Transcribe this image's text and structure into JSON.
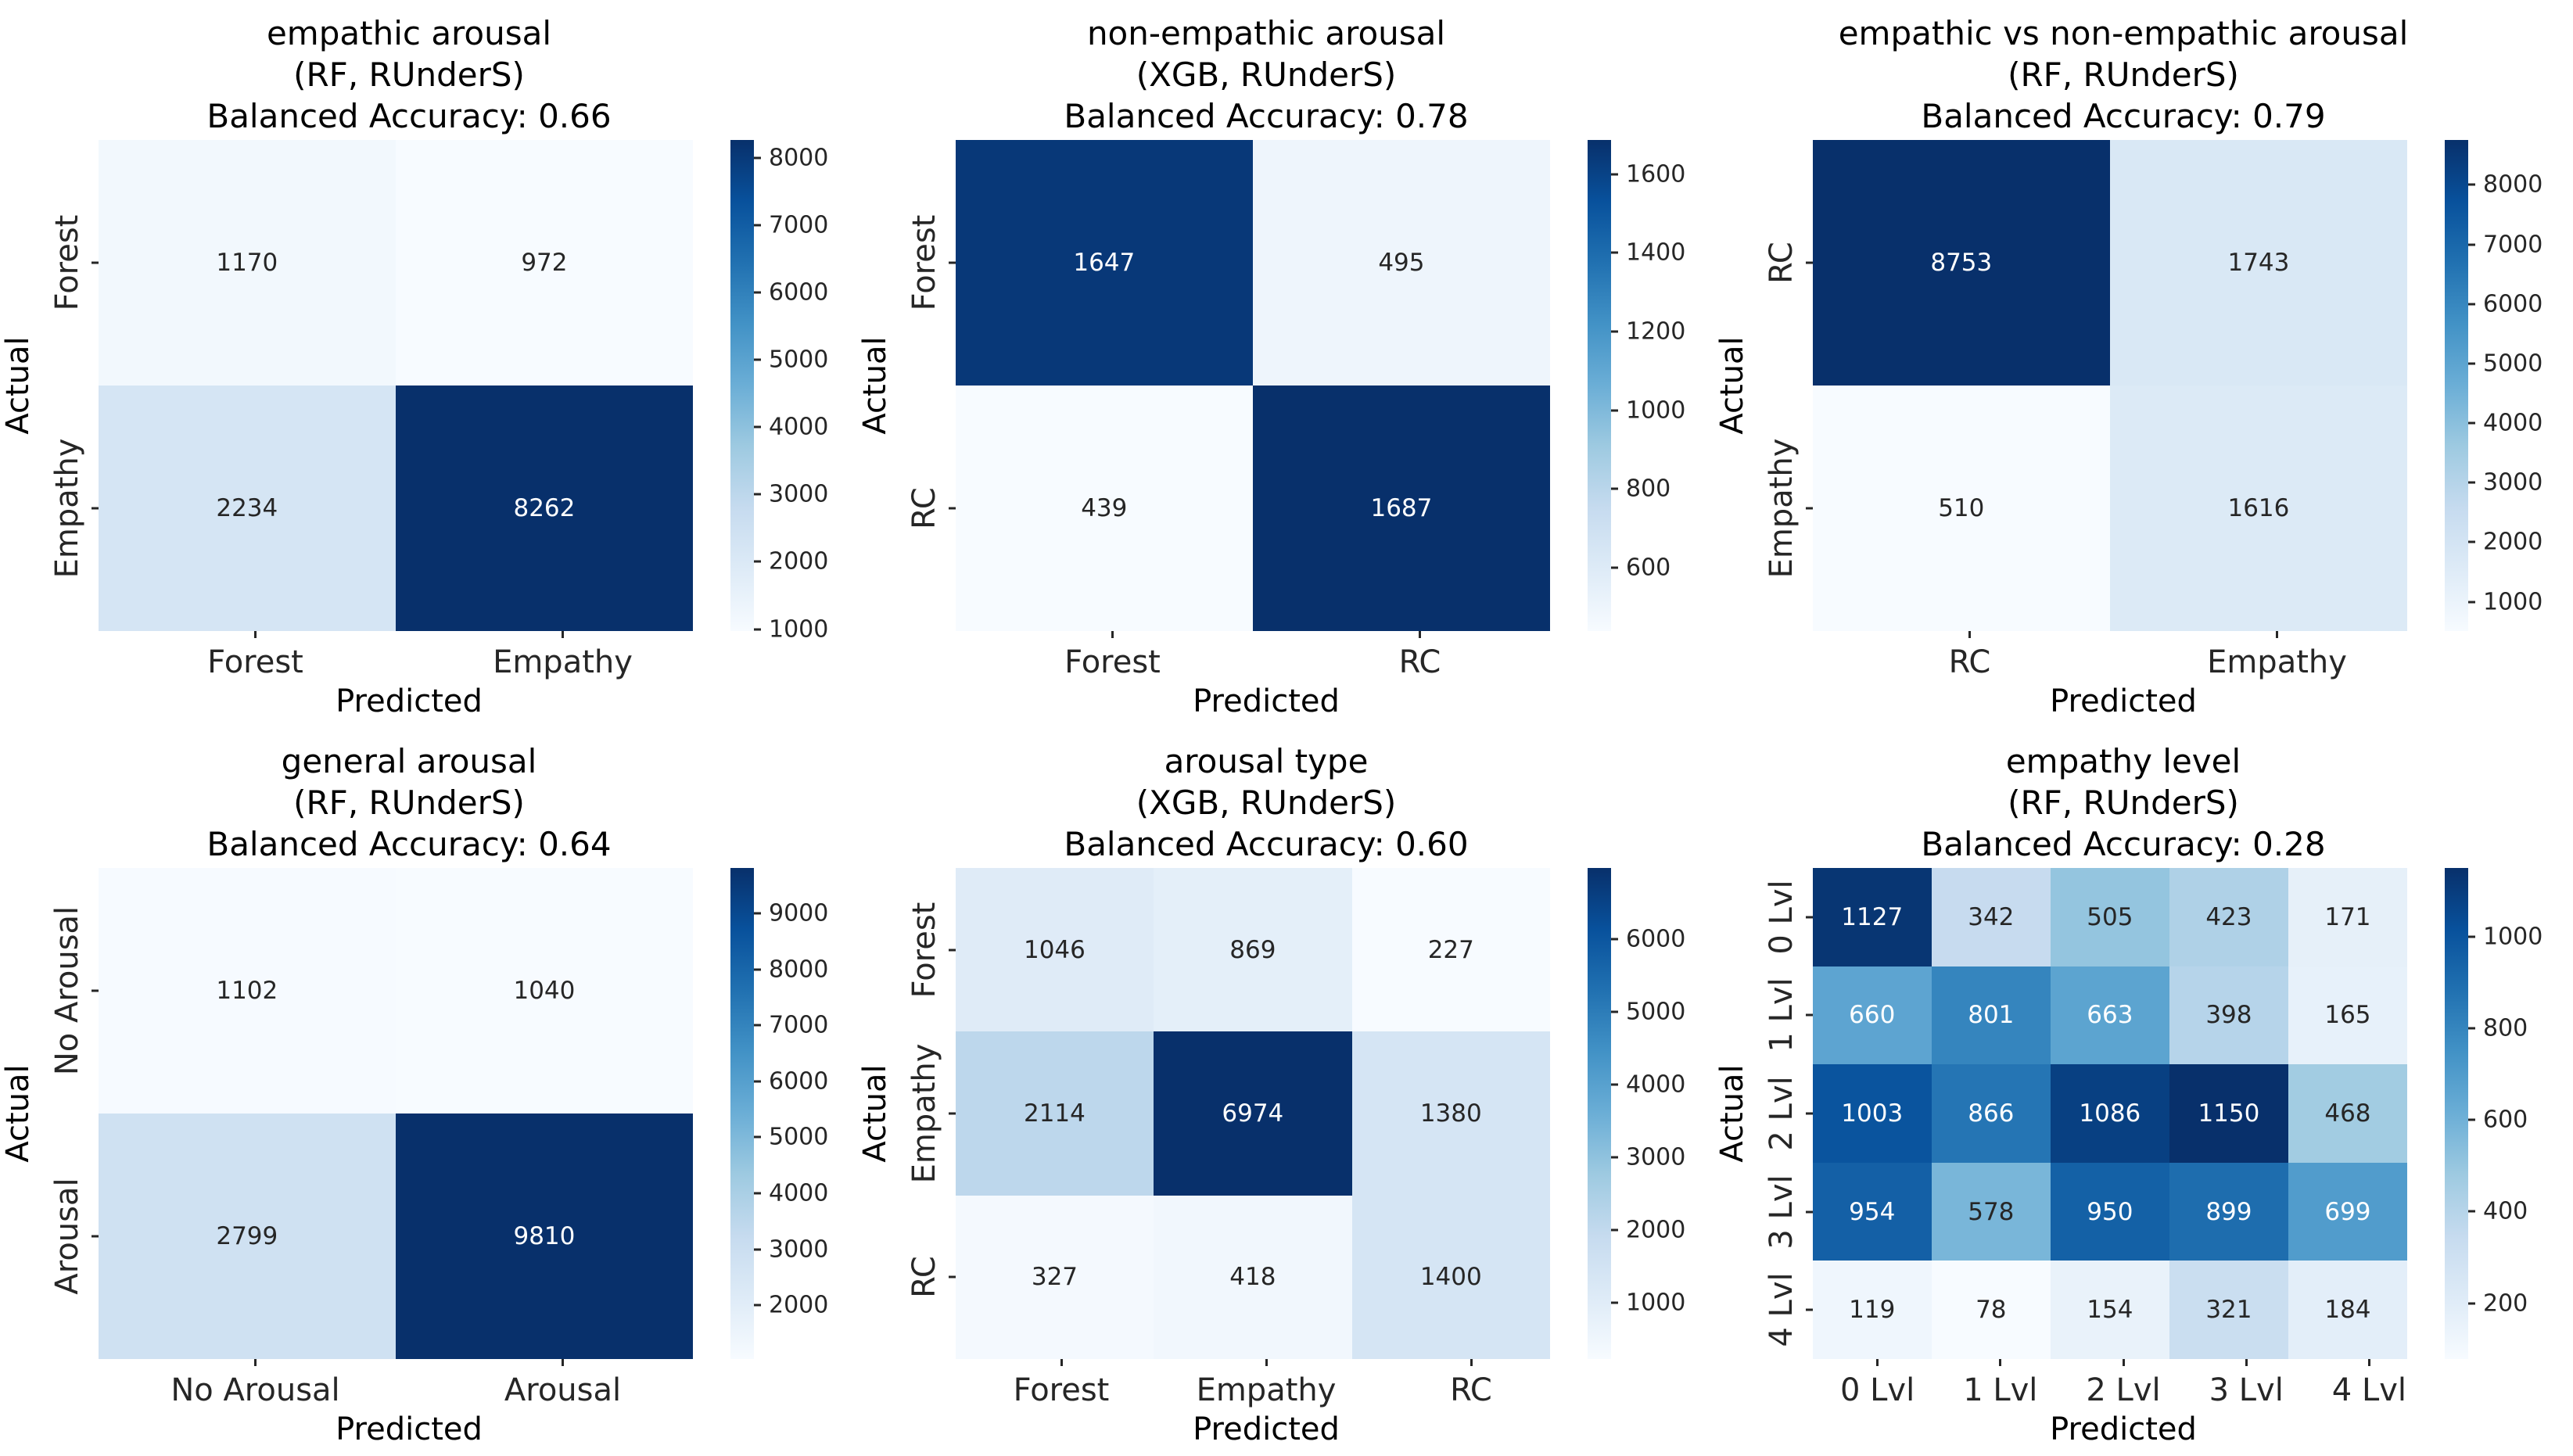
{
  "figure": {
    "background": "#ffffff",
    "annotation_text_dark": "#262626",
    "annotation_text_light": "#ffffff",
    "colormap": "Blues",
    "colormap_low": "#f7fbff",
    "colormap_high": "#08306b"
  },
  "chart_data": [
    {
      "type": "heatmap",
      "title": "empathic arousal",
      "subtitle": "(RF, RUnderS)",
      "accuracy_label": "Balanced Accuracy: 0.66",
      "xlabel": "Predicted",
      "ylabel": "Actual",
      "x_tick_labels": [
        "Forest",
        "Empathy"
      ],
      "y_tick_labels": [
        "Forest",
        "Empathy"
      ],
      "values": [
        [
          1170,
          972
        ],
        [
          2234,
          8262
        ]
      ],
      "colorbar_ticks": [
        1000,
        2000,
        3000,
        4000,
        5000,
        6000,
        7000,
        8000
      ],
      "colormap": "Blues",
      "legend_position": "right",
      "grid": false
    },
    {
      "type": "heatmap",
      "title": "non-empathic arousal",
      "subtitle": "(XGB, RUnderS)",
      "accuracy_label": "Balanced Accuracy: 0.78",
      "xlabel": "Predicted",
      "ylabel": "Actual",
      "x_tick_labels": [
        "Forest",
        "RC"
      ],
      "y_tick_labels": [
        "Forest",
        "RC"
      ],
      "values": [
        [
          1647,
          495
        ],
        [
          439,
          1687
        ]
      ],
      "colorbar_ticks": [
        600,
        800,
        1000,
        1200,
        1400,
        1600
      ],
      "colormap": "Blues",
      "legend_position": "right",
      "grid": false
    },
    {
      "type": "heatmap",
      "title": "empathic vs non-empathic arousal",
      "subtitle": "(RF, RUnderS)",
      "accuracy_label": "Balanced Accuracy: 0.79",
      "xlabel": "Predicted",
      "ylabel": "Actual",
      "x_tick_labels": [
        "RC",
        "Empathy"
      ],
      "y_tick_labels": [
        "RC",
        "Empathy"
      ],
      "values": [
        [
          8753,
          1743
        ],
        [
          510,
          1616
        ]
      ],
      "colorbar_ticks": [
        1000,
        2000,
        3000,
        4000,
        5000,
        6000,
        7000,
        8000
      ],
      "colormap": "Blues",
      "legend_position": "right",
      "grid": false
    },
    {
      "type": "heatmap",
      "title": "general arousal",
      "subtitle": "(RF, RUnderS)",
      "accuracy_label": "Balanced Accuracy: 0.64",
      "xlabel": "Predicted",
      "ylabel": "Actual",
      "x_tick_labels": [
        "No Arousal",
        "Arousal"
      ],
      "y_tick_labels": [
        "No Arousal",
        "Arousal"
      ],
      "values": [
        [
          1102,
          1040
        ],
        [
          2799,
          9810
        ]
      ],
      "colorbar_ticks": [
        2000,
        3000,
        4000,
        5000,
        6000,
        7000,
        8000,
        9000
      ],
      "colormap": "Blues",
      "legend_position": "right",
      "grid": false
    },
    {
      "type": "heatmap",
      "title": "arousal type",
      "subtitle": "(XGB, RUnderS)",
      "accuracy_label": "Balanced Accuracy: 0.60",
      "xlabel": "Predicted",
      "ylabel": "Actual",
      "x_tick_labels": [
        "Forest",
        "Empathy",
        "RC"
      ],
      "y_tick_labels": [
        "Forest",
        "Empathy",
        "RC"
      ],
      "values": [
        [
          1046,
          869,
          227
        ],
        [
          2114,
          6974,
          1380
        ],
        [
          327,
          418,
          1400
        ]
      ],
      "colorbar_ticks": [
        1000,
        2000,
        3000,
        4000,
        5000,
        6000
      ],
      "colormap": "Blues",
      "legend_position": "right",
      "grid": false
    },
    {
      "type": "heatmap",
      "title": "empathy level",
      "subtitle": "(RF, RUnderS)",
      "accuracy_label": "Balanced Accuracy: 0.28",
      "xlabel": "Predicted",
      "ylabel": "Actual",
      "x_tick_labels": [
        "0 Lvl",
        "1 Lvl",
        "2 Lvl",
        "3 Lvl",
        "4 Lvl"
      ],
      "y_tick_labels": [
        "0 Lvl",
        "1 Lvl",
        "2 Lvl",
        "3 Lvl",
        "4 Lvl"
      ],
      "values": [
        [
          1127,
          342,
          505,
          423,
          171
        ],
        [
          660,
          801,
          663,
          398,
          165
        ],
        [
          1003,
          866,
          1086,
          1150,
          468
        ],
        [
          954,
          578,
          950,
          899,
          699
        ],
        [
          119,
          78,
          154,
          321,
          184
        ]
      ],
      "colorbar_ticks": [
        200,
        400,
        600,
        800,
        1000
      ],
      "colormap": "Blues",
      "legend_position": "right",
      "grid": false
    }
  ]
}
